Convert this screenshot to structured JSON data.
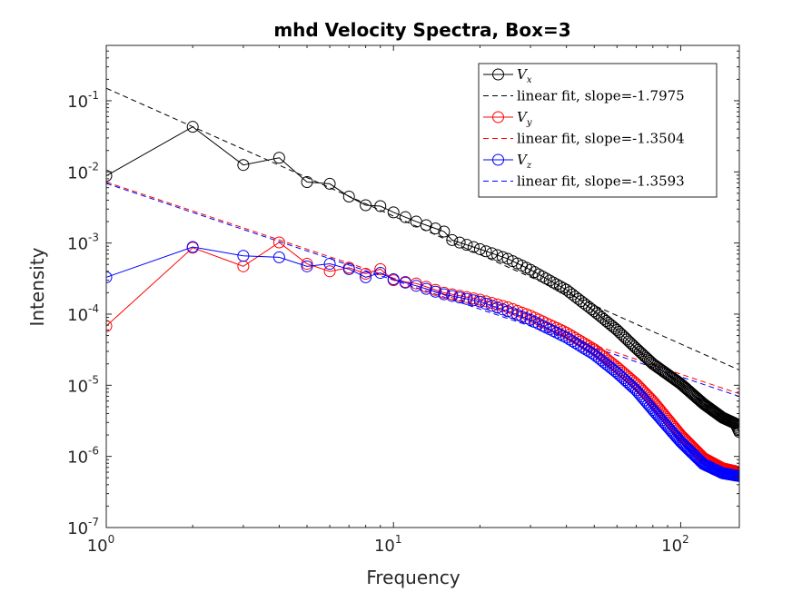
{
  "chart_data": {
    "type": "line",
    "title": "mhd Velocity Spectra, Box=3",
    "xlabel": "Frequency",
    "ylabel": "Intensity",
    "xscale": "log",
    "yscale": "log",
    "xlim": [
      1,
      160
    ],
    "ylim": [
      1e-07,
      0.6
    ],
    "x_ticks": [
      {
        "base": "10",
        "exp": "0",
        "value": 1
      },
      {
        "base": "10",
        "exp": "1",
        "value": 10
      },
      {
        "base": "10",
        "exp": "2",
        "value": 100
      }
    ],
    "y_ticks": [
      {
        "base": "10",
        "exp": "-7",
        "value": 1e-07
      },
      {
        "base": "10",
        "exp": "-6",
        "value": 1e-06
      },
      {
        "base": "10",
        "exp": "-5",
        "value": 1e-05
      },
      {
        "base": "10",
        "exp": "-4",
        "value": 0.0001
      },
      {
        "base": "10",
        "exp": "-3",
        "value": 0.001
      },
      {
        "base": "10",
        "exp": "-2",
        "value": 0.01
      },
      {
        "base": "10",
        "exp": "-1",
        "value": 0.1
      }
    ],
    "legend_position": "top-right",
    "grid": false,
    "series": [
      {
        "name": "Vx",
        "legend_main": "V",
        "legend_sub": "x",
        "color": "#000000",
        "marker": "circle",
        "x_max": 160,
        "points": [
          [
            1,
            0.0088
          ],
          [
            2,
            0.043
          ],
          [
            3,
            0.0125
          ],
          [
            4,
            0.0158
          ],
          [
            5,
            0.0072
          ],
          [
            6,
            0.0068
          ],
          [
            7,
            0.0045
          ],
          [
            8,
            0.0034
          ],
          [
            9,
            0.0033
          ],
          [
            10,
            0.0027
          ],
          [
            12,
            0.002
          ],
          [
            15,
            0.00145
          ],
          [
            16,
            0.0011
          ],
          [
            20,
            0.00082
          ],
          [
            25,
            0.0006
          ],
          [
            30,
            0.00042
          ],
          [
            40,
            0.00022
          ],
          [
            50,
            0.00011
          ],
          [
            60,
            6e-05
          ],
          [
            70,
            3.3e-05
          ],
          [
            80,
            2e-05
          ],
          [
            100,
            1.05e-05
          ],
          [
            120,
            5.5e-06
          ],
          [
            140,
            3.5e-06
          ],
          [
            155,
            2.9e-06
          ],
          [
            160,
            2.2e-06
          ]
        ],
        "fit": {
          "label": "linear fit, slope=-1.7975",
          "slope": -1.7975,
          "y_at_1": 0.15
        }
      },
      {
        "name": "Vy",
        "legend_main": "V",
        "legend_sub": "y",
        "color": "#ff0000",
        "marker": "circle",
        "x_max": 160,
        "points": [
          [
            1,
            6.8e-05
          ],
          [
            2,
            0.00086
          ],
          [
            3,
            0.00047
          ],
          [
            4,
            0.00102
          ],
          [
            5,
            0.00051
          ],
          [
            6,
            0.0004
          ],
          [
            7,
            0.00045
          ],
          [
            8,
            0.00037
          ],
          [
            9,
            0.00043
          ],
          [
            10,
            0.0003
          ],
          [
            12,
            0.00027
          ],
          [
            15,
            0.0002
          ],
          [
            20,
            0.00016
          ],
          [
            25,
            0.000125
          ],
          [
            30,
            9.5e-05
          ],
          [
            40,
            5.5e-05
          ],
          [
            50,
            3.2e-05
          ],
          [
            60,
            1.8e-05
          ],
          [
            70,
            1.05e-05
          ],
          [
            80,
            6e-06
          ],
          [
            100,
            2e-06
          ],
          [
            120,
            9.5e-07
          ],
          [
            140,
            6.8e-07
          ],
          [
            155,
            6.2e-07
          ],
          [
            160,
            5.6e-07
          ]
        ],
        "fit": {
          "label": "linear fit, slope=-1.3504",
          "slope": -1.3504,
          "y_at_1": 0.0072
        }
      },
      {
        "name": "Vz",
        "legend_main": "V",
        "legend_sub": "z",
        "color": "#0000ff",
        "marker": "circle",
        "x_max": 160,
        "points": [
          [
            1,
            0.00033
          ],
          [
            2,
            0.00088
          ],
          [
            3,
            0.00066
          ],
          [
            4,
            0.00063
          ],
          [
            5,
            0.00047
          ],
          [
            6,
            0.00051
          ],
          [
            7,
            0.00043
          ],
          [
            8,
            0.00033
          ],
          [
            9,
            0.00038
          ],
          [
            10,
            0.00031
          ],
          [
            12,
            0.00025
          ],
          [
            15,
            0.00019
          ],
          [
            20,
            0.00015
          ],
          [
            25,
            0.00011
          ],
          [
            30,
            8.3e-05
          ],
          [
            40,
            4.7e-05
          ],
          [
            50,
            2.7e-05
          ],
          [
            60,
            1.5e-05
          ],
          [
            70,
            8.5e-06
          ],
          [
            80,
            4.5e-06
          ],
          [
            100,
            1.6e-06
          ],
          [
            120,
            7.8e-07
          ],
          [
            140,
            5.8e-07
          ],
          [
            155,
            5.4e-07
          ],
          [
            160,
            5.3e-07
          ]
        ],
        "fit": {
          "label": "linear fit, slope=-1.3593",
          "slope": -1.3593,
          "y_at_1": 0.0069
        }
      }
    ]
  }
}
